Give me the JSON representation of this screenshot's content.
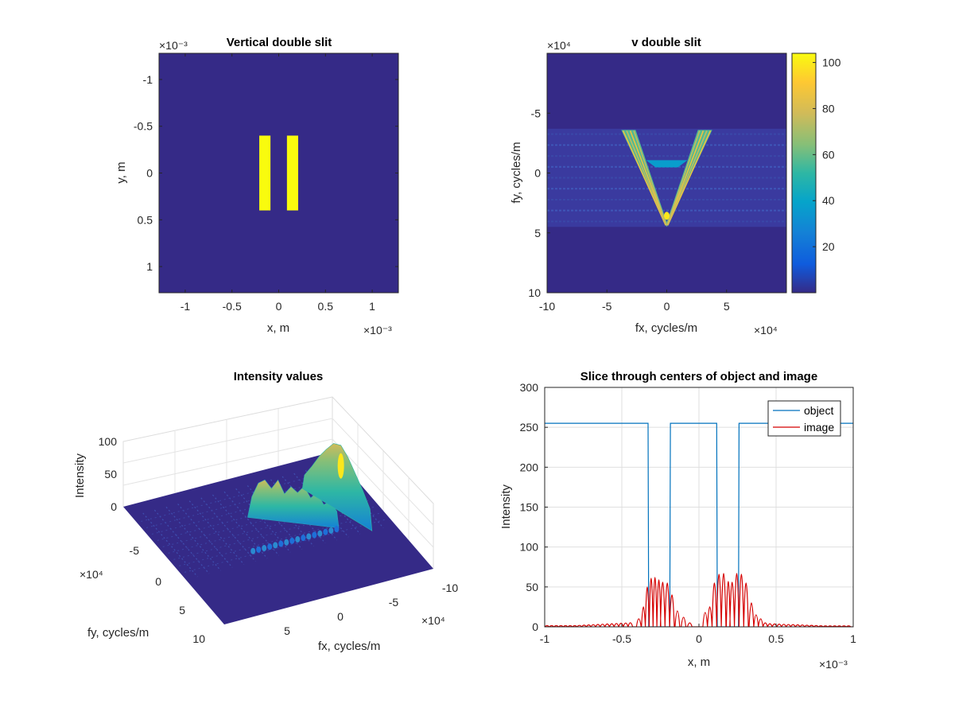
{
  "colors": {
    "background": "#ffffff",
    "axis": "#262626",
    "grid": "#dfdfdf",
    "parula_low": "#352a87",
    "parula_high": "#f9fb0e",
    "object_line": "#0072bd",
    "image_line": "#d50000"
  },
  "chart_data": [
    {
      "type": "heatmap",
      "title": "Vertical double slit",
      "xlabel": "x, m",
      "ylabel": "y, m",
      "xlim": [
        -0.00128,
        0.00128
      ],
      "ylim": [
        -0.00128,
        0.00128
      ],
      "y_reversed": true,
      "x_exponent": "×10⁻³",
      "y_exponent": "×10⁻³",
      "x_ticks": [
        -0.001,
        -0.0005,
        0,
        0.0005,
        0.001
      ],
      "x_tick_labels": [
        "-1",
        "-0.5",
        "0",
        "0.5",
        "1"
      ],
      "y_ticks": [
        -0.001,
        -0.0005,
        0,
        0.0005,
        0.001
      ],
      "y_tick_labels": [
        "-1",
        "-0.5",
        "0",
        "0.5",
        "1"
      ],
      "slits": [
        {
          "x": [
            -0.000208,
            -8.8e-05
          ],
          "y": [
            -0.0004,
            0.0004
          ]
        },
        {
          "x": [
            8.8e-05,
            0.000208
          ],
          "y": [
            -0.0004,
            0.0004
          ]
        }
      ],
      "grid": false
    },
    {
      "type": "heatmap",
      "title": "v double slit",
      "xlabel": "fx, cycles/m",
      "ylabel": "fy, cycles/m",
      "xlim": [
        -100000,
        100000
      ],
      "ylim": [
        -100000,
        100000
      ],
      "y_reversed": true,
      "x_exponent": "×10⁴",
      "y_exponent": "×10⁴",
      "x_ticks": [
        -100000,
        -50000,
        0,
        50000
      ],
      "x_tick_labels": [
        "-10",
        "-5",
        "0",
        "5"
      ],
      "y_ticks": [
        -50000,
        0,
        50000,
        100000
      ],
      "y_tick_labels": [
        "-5",
        "0",
        "5",
        "10"
      ],
      "band_fy": [
        -37000,
        45000
      ],
      "v_top_fy": -36000,
      "v_bottom_fy": 45000,
      "v_half_width_top": 38000,
      "v_stroke_width": 12000,
      "peak_intensity": 104,
      "colorbar": {
        "min": 0,
        "max": 104,
        "ticks": [
          20,
          40,
          60,
          80,
          100
        ],
        "tick_labels": [
          "20",
          "40",
          "60",
          "80",
          "100"
        ],
        "position": "right"
      },
      "grid": false
    },
    {
      "type": "surface",
      "title": "Intensity values",
      "xlabel": "fx, cycles/m",
      "ylabel": "fy, cycles/m",
      "zlabel": "Intensity",
      "x_exponent": "×10⁴",
      "y_exponent": "×10⁴",
      "fx_tick_labels": [
        "-10",
        "-5",
        "0",
        "5"
      ],
      "fy_tick_labels": [
        "-5",
        "0",
        "5",
        "10"
      ],
      "z_ticks": [
        0,
        50,
        100
      ],
      "z_tick_labels": [
        "0",
        "50",
        "100"
      ],
      "zlim": [
        0,
        100
      ],
      "peak_intensity": 100,
      "grid": true
    },
    {
      "type": "line",
      "title": "Slice through centers of object and image",
      "xlabel": "x, m",
      "ylabel": "Intensity",
      "xlim": [
        -0.001,
        0.001
      ],
      "ylim": [
        0,
        300
      ],
      "x_exponent": "×10⁻³",
      "x_ticks": [
        -0.001,
        -0.0005,
        0,
        0.0005,
        0.001
      ],
      "x_tick_labels": [
        "-1",
        "-0.5",
        "0",
        "0.5",
        "1"
      ],
      "y_ticks": [
        0,
        50,
        100,
        150,
        200,
        250,
        300
      ],
      "y_tick_labels": [
        "0",
        "50",
        "100",
        "150",
        "200",
        "250",
        "300"
      ],
      "legend_position": "top-right",
      "grid": true,
      "series": [
        {
          "name": "object",
          "color": "#0072bd",
          "high": 255,
          "low": 0,
          "low_intervals": [
            [
              -0.00033,
              -0.000185
            ],
            [
              0.000115,
              0.00026
            ]
          ]
        },
        {
          "name": "image",
          "color": "#d50000",
          "peaks": [
            {
              "x": -0.00039,
              "y": 10
            },
            {
              "x": -0.00036,
              "y": 25
            },
            {
              "x": -0.000335,
              "y": 50
            },
            {
              "x": -0.00031,
              "y": 61
            },
            {
              "x": -0.000285,
              "y": 62
            },
            {
              "x": -0.00026,
              "y": 59
            },
            {
              "x": -0.000235,
              "y": 56
            },
            {
              "x": -0.000205,
              "y": 55
            },
            {
              "x": -0.000175,
              "y": 40
            },
            {
              "x": -0.00014,
              "y": 20
            },
            {
              "x": -0.0001,
              "y": 12
            },
            {
              "x": -6e-05,
              "y": 5
            },
            {
              "x": 4e-05,
              "y": 18
            },
            {
              "x": 7e-05,
              "y": 25
            },
            {
              "x": 0.0001,
              "y": 55
            },
            {
              "x": 0.00013,
              "y": 66
            },
            {
              "x": 0.00016,
              "y": 67
            },
            {
              "x": 0.00019,
              "y": 57
            },
            {
              "x": 0.000215,
              "y": 56
            },
            {
              "x": 0.000245,
              "y": 67
            },
            {
              "x": 0.000275,
              "y": 66
            },
            {
              "x": 0.000305,
              "y": 55
            },
            {
              "x": 0.00034,
              "y": 30
            },
            {
              "x": 0.00037,
              "y": 15
            },
            {
              "x": 0.0004,
              "y": 10
            },
            {
              "x": 0.00043,
              "y": 5
            }
          ]
        }
      ]
    }
  ]
}
